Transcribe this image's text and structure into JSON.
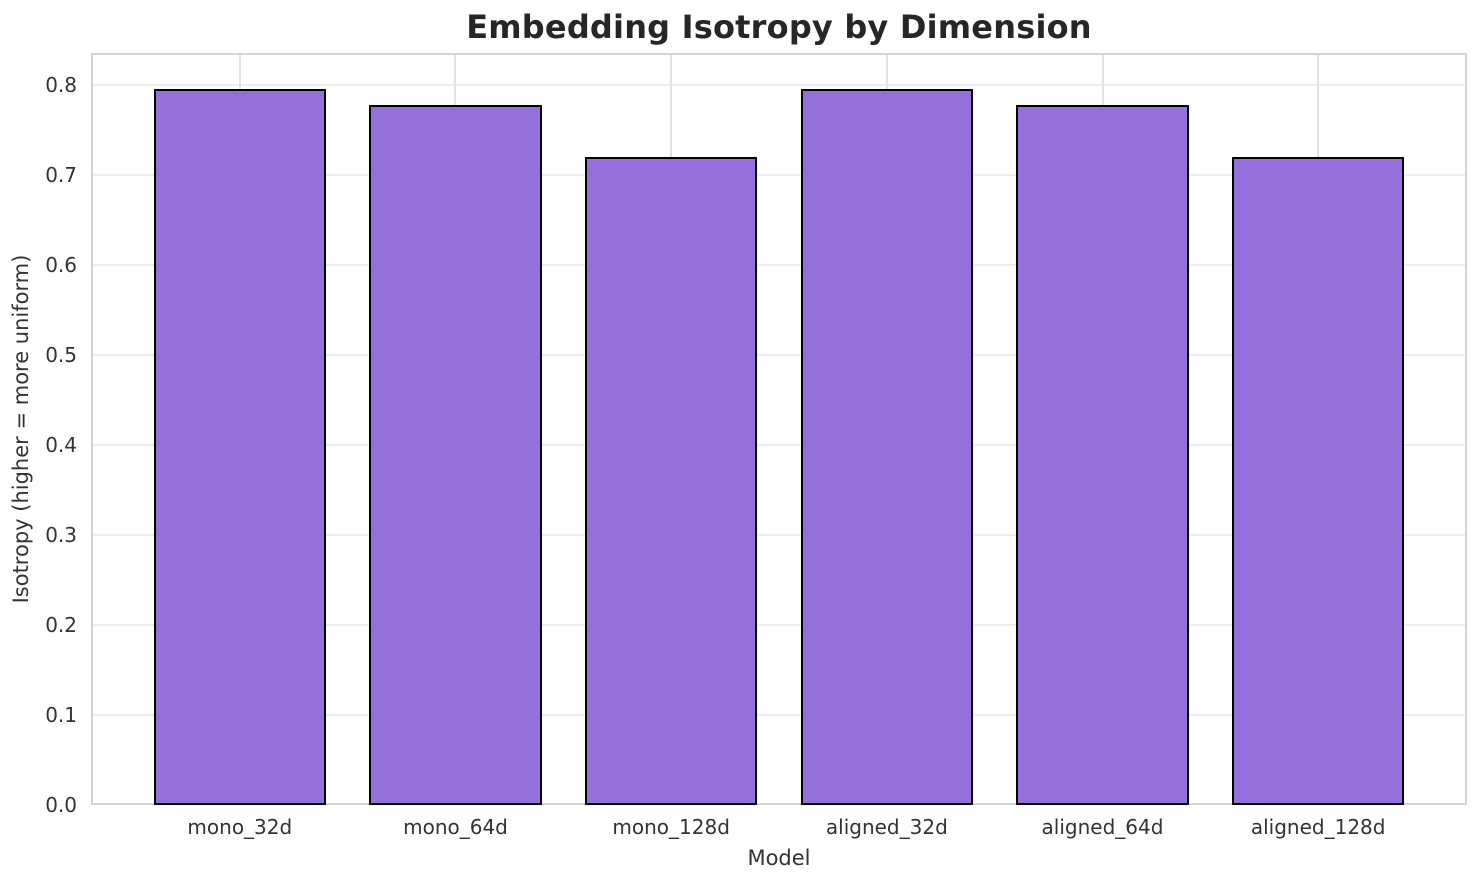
{
  "chart_data": {
    "type": "bar",
    "title": "Embedding Isotropy by Dimension",
    "xlabel": "Model",
    "ylabel": "Isotropy (higher = more uniform)",
    "categories": [
      "mono_32d",
      "mono_64d",
      "mono_128d",
      "aligned_32d",
      "aligned_64d",
      "aligned_128d"
    ],
    "values": [
      0.796,
      0.778,
      0.72,
      0.796,
      0.778,
      0.72
    ],
    "ylim": [
      0,
      0.836
    ],
    "yticks": [
      0.0,
      0.1,
      0.2,
      0.3,
      0.4,
      0.5,
      0.6,
      0.7,
      0.8
    ],
    "ytick_labels": [
      "0.0",
      "0.1",
      "0.2",
      "0.3",
      "0.4",
      "0.5",
      "0.6",
      "0.7",
      "0.8"
    ],
    "grid": true,
    "legend": "none",
    "bar_width_fraction": 0.8,
    "colors": {
      "bar_fill": "#9370db",
      "bar_edge": "#000000",
      "grid_h": "#ededed",
      "grid_v": "#e2e2e2",
      "spine": "#d3d3d3",
      "tick_text": "#333333",
      "title_text": "#262626",
      "background": "#ffffff"
    }
  }
}
